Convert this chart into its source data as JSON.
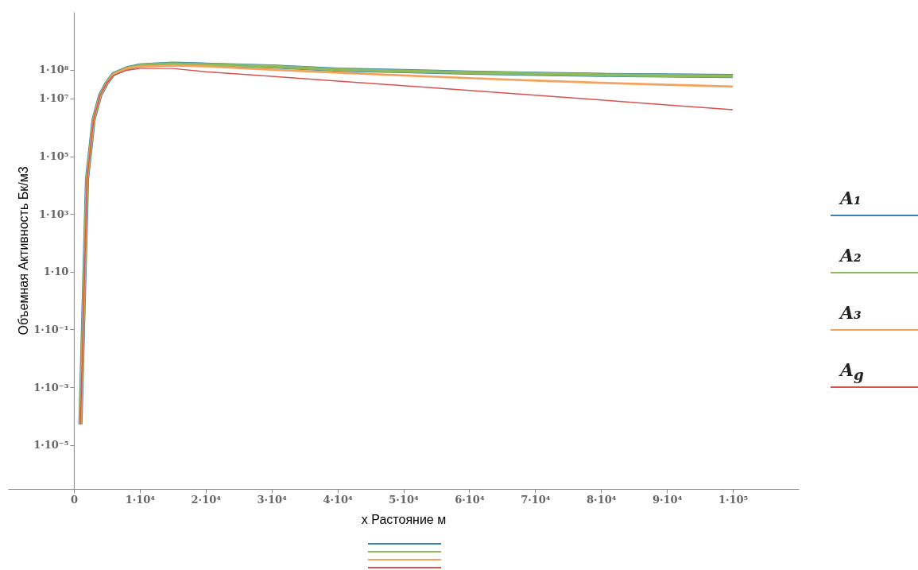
{
  "chart_data": {
    "type": "line",
    "xlabel": "x Растояние м",
    "ylabel": "Объемная Активность Бк/м3",
    "log": "y",
    "grid": false,
    "legend": "right",
    "marker": "none",
    "line_style": "solid",
    "x": [
      1000,
      2000,
      3000,
      4000,
      5000,
      6000,
      8000,
      10000,
      12000,
      15000,
      20000,
      30000,
      40000,
      50000,
      60000,
      70000,
      80000,
      90000,
      100000
    ],
    "xlim": [
      -10000,
      110000
    ],
    "xticks": [
      0,
      {
        "value": 10000,
        "label": "1·10⁴"
      },
      {
        "value": 20000,
        "label": "2·10⁴"
      },
      {
        "value": 30000,
        "label": "3·10⁴"
      },
      {
        "value": 40000,
        "label": "4·10⁴"
      },
      {
        "value": 50000,
        "label": "5·10⁴"
      },
      {
        "value": 60000,
        "label": "6·10⁴"
      },
      {
        "value": 70000,
        "label": "7·10⁴"
      },
      {
        "value": 80000,
        "label": "8·10⁴"
      },
      {
        "value": 90000,
        "label": "9·10⁴"
      },
      {
        "value": 100000,
        "label": "1·10⁵"
      }
    ],
    "ylim": [
      3e-07,
      10000000000.0
    ],
    "yticks": [
      {
        "value": 1e-05,
        "label": "1·10⁻⁵"
      },
      {
        "value": 0.001,
        "label": "1·10⁻³"
      },
      {
        "value": 0.1,
        "label": "1·10⁻¹"
      },
      {
        "value": 10,
        "label": "1·10"
      },
      {
        "value": 1000,
        "label": "1·10³"
      },
      {
        "value": 100000,
        "label": "1·10⁵"
      },
      {
        "value": 10000000,
        "label": "1·10⁷"
      },
      {
        "value": 100000000,
        "label": "1·10⁸"
      }
    ],
    "series": [
      {
        "name": "A₁",
        "color": "#3a7fb8",
        "values": [
          5.2e-05,
          16000.0,
          1900000.0,
          13000000.0,
          35000000.0,
          71000000.0,
          110000000.0,
          140000000.0,
          150000000.0,
          160000000.0,
          150000000.0,
          130000000.0,
          100000000.0,
          89000000.0,
          79000000.0,
          72000000.0,
          66000000.0,
          63000000.0,
          60000000.0
        ]
      },
      {
        "name": "A₂",
        "color": "#8dbb5c",
        "values": [
          5.2e-05,
          16000.0,
          1900000.0,
          13000000.0,
          35000000.0,
          71000000.0,
          110000000.0,
          140000000.0,
          150000000.0,
          160000000.0,
          150000000.0,
          130000000.0,
          100000000.0,
          89000000.0,
          79000000.0,
          72000000.0,
          66000000.0,
          63000000.0,
          60000000.0
        ]
      },
      {
        "name": "A₃",
        "color": "#f5a25d",
        "values": [
          5.2e-05,
          16000.0,
          1900000.0,
          13000000.0,
          35000000.0,
          68000000.0,
          110000000.0,
          130000000.0,
          130000000.0,
          140000000.0,
          130000000.0,
          100000000.0,
          79000000.0,
          63000000.0,
          51000000.0,
          42000000.0,
          35000000.0,
          30000000.0,
          26000000.0
        ]
      },
      {
        "name": "A$_{g}$",
        "color": "#d6544f",
        "values": [
          5.2e-05,
          16000.0,
          1900000.0,
          13000000.0,
          35000000.0,
          63000000.0,
          95000000.0,
          110000000.0,
          110000000.0,
          110000000.0,
          85000000.0,
          59000000.0,
          40000000.0,
          28000000.0,
          19000000.0,
          13000000.0,
          8900000.0,
          6000000.0,
          4100000.0
        ]
      }
    ]
  }
}
